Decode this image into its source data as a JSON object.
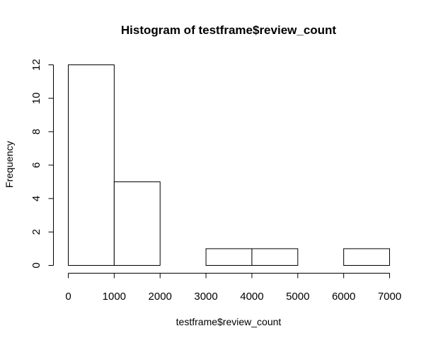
{
  "chart_data": {
    "type": "bar",
    "subtype": "histogram",
    "title": "Histogram of testframe$review_count",
    "xlabel": "testframe$review_count",
    "ylabel": "Frequency",
    "bins": [
      {
        "from": 0,
        "to": 1000,
        "count": 12
      },
      {
        "from": 1000,
        "to": 2000,
        "count": 5
      },
      {
        "from": 2000,
        "to": 3000,
        "count": 0
      },
      {
        "from": 3000,
        "to": 4000,
        "count": 1
      },
      {
        "from": 4000,
        "to": 5000,
        "count": 1
      },
      {
        "from": 5000,
        "to": 6000,
        "count": 0
      },
      {
        "from": 6000,
        "to": 7000,
        "count": 1
      }
    ],
    "xlim": [
      0,
      7000
    ],
    "ylim": [
      0,
      12
    ],
    "x_ticks": [
      "0",
      "1000",
      "2000",
      "3000",
      "4000",
      "5000",
      "6000",
      "7000"
    ],
    "y_ticks": [
      "0",
      "2",
      "4",
      "6",
      "8",
      "10",
      "12"
    ],
    "grid": false,
    "legend": "none",
    "bar_fill": "#ffffff",
    "bar_stroke": "#000000"
  }
}
